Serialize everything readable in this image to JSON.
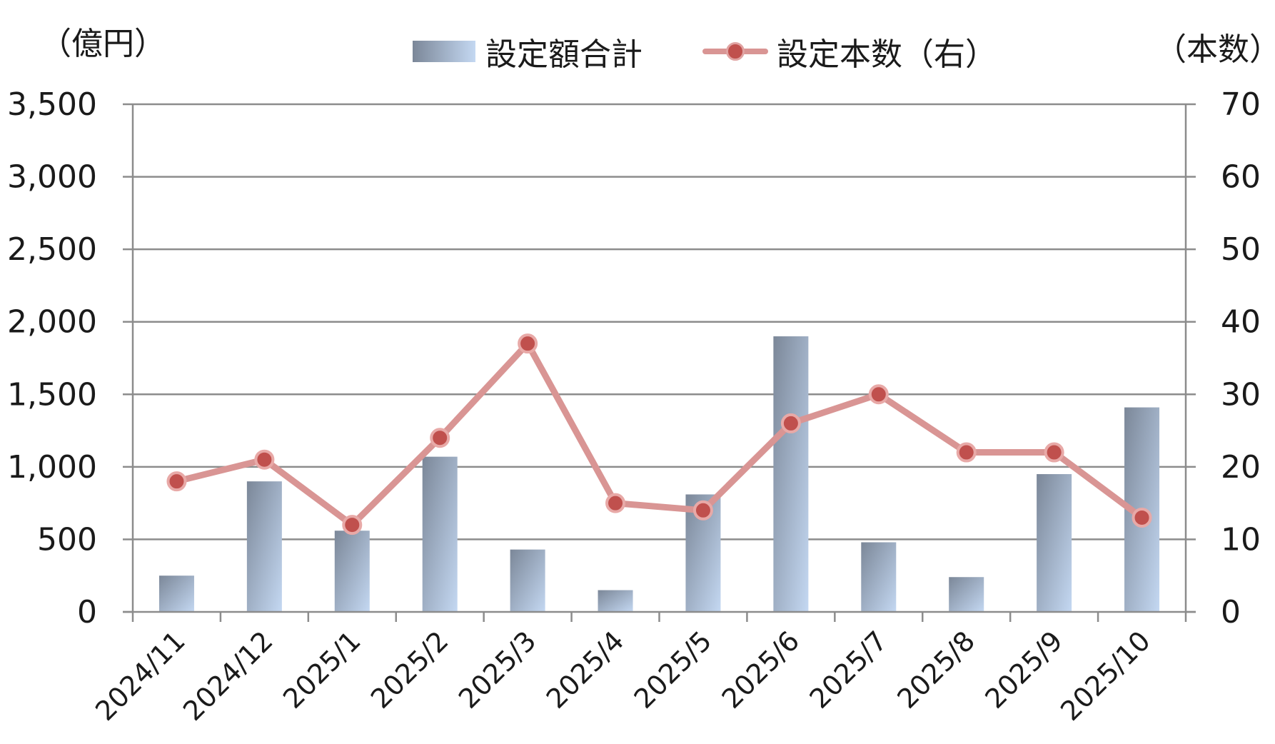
{
  "legend": {
    "bar_label": "設定額合計",
    "line_label": "設定本数（右）"
  },
  "units": {
    "left": "（億円）",
    "right": "（本数）"
  },
  "colors": {
    "bar_dark": "#7b8798",
    "bar_light": "#c4d8f2",
    "line": "#d99594",
    "marker": "#c0504d",
    "grid": "#8c8c8c"
  },
  "chart_data": {
    "type": "bar",
    "categories": [
      "2024/11",
      "2024/12",
      "2025/1",
      "2025/2",
      "2025/3",
      "2025/4",
      "2025/5",
      "2025/6",
      "2025/7",
      "2025/8",
      "2025/9",
      "2025/10"
    ],
    "series": [
      {
        "name": "設定額合計",
        "type": "bar",
        "axis": "left",
        "values": [
          250,
          900,
          560,
          1070,
          430,
          150,
          810,
          1900,
          480,
          240,
          950,
          1410
        ]
      },
      {
        "name": "設定本数（右）",
        "type": "line",
        "axis": "right",
        "values": [
          18,
          21,
          12,
          24,
          37,
          15,
          14,
          26,
          30,
          22,
          22,
          13
        ]
      }
    ],
    "y_left": {
      "ylim": [
        0,
        3500
      ],
      "ticks": [
        "0",
        "500",
        "1,000",
        "1,500",
        "2,000",
        "2,500",
        "3,000",
        "3,500"
      ]
    },
    "y_right": {
      "ylim": [
        0,
        70
      ],
      "ticks": [
        "0",
        "10",
        "20",
        "30",
        "40",
        "50",
        "60",
        "70"
      ]
    },
    "grid": true,
    "legend_position": "top-center"
  }
}
